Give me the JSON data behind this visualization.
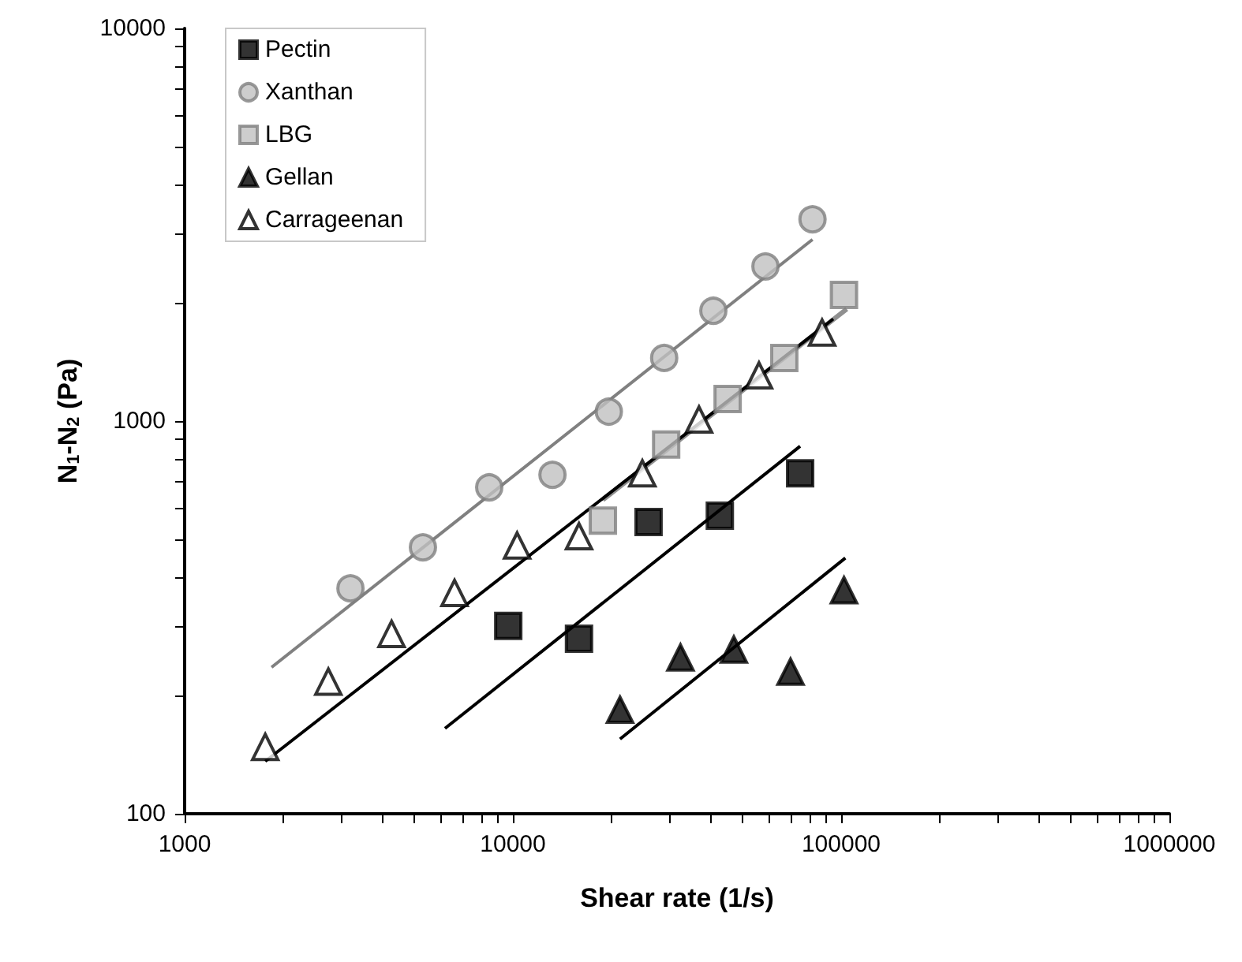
{
  "chart_data": {
    "type": "scatter",
    "xlabel": "Shear rate (1/s)",
    "ylabel": "N$_{1}$-N$_{2}$ (Pa)",
    "log": "xy",
    "xlim": [
      1000,
      1000000
    ],
    "ylim": [
      100,
      10000
    ],
    "xticks": [
      1000,
      10000,
      100000,
      1000000
    ],
    "yticks": [
      100,
      1000,
      10000
    ],
    "grid": false,
    "legend": "top left",
    "series": [
      {
        "name": "Pectin",
        "color": "#000000",
        "marker": "square",
        "x": [
          9680,
          15900,
          25900,
          42700,
          75000
        ],
        "values": [
          301,
          279,
          553,
          574,
          736
        ]
      },
      {
        "name": "Xanthan",
        "color": "#c0c0c0",
        "marker": "circle",
        "x": [
          3200,
          5320,
          8470,
          13200,
          19600,
          28900,
          40800,
          58800,
          81800
        ],
        "values": [
          375,
          477,
          678,
          730,
          1057,
          1448,
          1910,
          2477,
          3265
        ]
      },
      {
        "name": "LBG",
        "color": "#c0c0c0",
        "marker": "square",
        "x": [
          18800,
          29300,
          45100,
          67100,
          102000
        ],
        "values": [
          558,
          871,
          1138,
          1448,
          2095
        ]
      },
      {
        "name": "Gellan",
        "color": "#000000",
        "marker": "triangle",
        "x": [
          21200,
          32400,
          47100,
          70100,
          102000
        ],
        "values": [
          184,
          250,
          262,
          230,
          371
        ]
      },
      {
        "name": "Carrageenan",
        "color": "#ffffff",
        "marker": "triangle",
        "x": [
          1760,
          2740,
          4270,
          6640,
          10300,
          15900,
          24800,
          36900,
          56200,
          87500
        ],
        "values": [
          148,
          217,
          287,
          365,
          482,
          509,
          736,
          1009,
          1307,
          1680
        ]
      },
      {
        "type": "line",
        "color": "#808080",
        "marker": "none",
        "x": [
          1840,
          81800
        ],
        "values": [
          236,
          2900
        ]
      },
      {
        "type": "line",
        "color": "#000000",
        "marker": "none",
        "x": [
          1760,
          94600
        ],
        "values": [
          136,
          1820
        ]
      },
      {
        "type": "line",
        "color": "#909090",
        "marker": "none",
        "x": [
          18800,
          104000
        ],
        "values": [
          630,
          1930
        ]
      },
      {
        "type": "line",
        "color": "#000000",
        "marker": "none",
        "x": [
          6210,
          75000
        ],
        "values": [
          165,
          863
        ]
      },
      {
        "type": "line",
        "color": "#000000",
        "marker": "none",
        "x": [
          21200,
          103000
        ],
        "values": [
          155,
          448
        ]
      }
    ]
  }
}
